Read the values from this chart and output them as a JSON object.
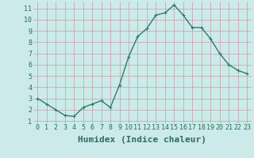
{
  "x": [
    0,
    1,
    2,
    3,
    4,
    5,
    6,
    7,
    8,
    9,
    10,
    11,
    12,
    13,
    14,
    15,
    16,
    17,
    18,
    19,
    20,
    21,
    22,
    23
  ],
  "y": [
    3.0,
    2.5,
    2.0,
    1.5,
    1.4,
    2.2,
    2.5,
    2.8,
    2.2,
    4.2,
    6.7,
    8.5,
    9.2,
    10.4,
    10.6,
    11.3,
    10.4,
    9.3,
    9.3,
    8.3,
    7.0,
    6.0,
    5.5,
    5.2
  ],
  "line_color": "#2d7b6e",
  "marker": "+",
  "marker_size": 3,
  "marker_linewidth": 0.8,
  "bg_color": "#cceaea",
  "grid_color": "#c0a0a0",
  "xlabel": "Humidex (Indice chaleur)",
  "xlim": [
    -0.5,
    23.5
  ],
  "ylim": [
    0.8,
    11.6
  ],
  "yticks": [
    1,
    2,
    3,
    4,
    5,
    6,
    7,
    8,
    9,
    10,
    11
  ],
  "xticks": [
    0,
    1,
    2,
    3,
    4,
    5,
    6,
    7,
    8,
    9,
    10,
    11,
    12,
    13,
    14,
    15,
    16,
    17,
    18,
    19,
    20,
    21,
    22,
    23
  ],
  "tick_label_color": "#2d6b60",
  "tick_label_size": 6,
  "xlabel_size": 8,
  "linewidth": 1.0
}
